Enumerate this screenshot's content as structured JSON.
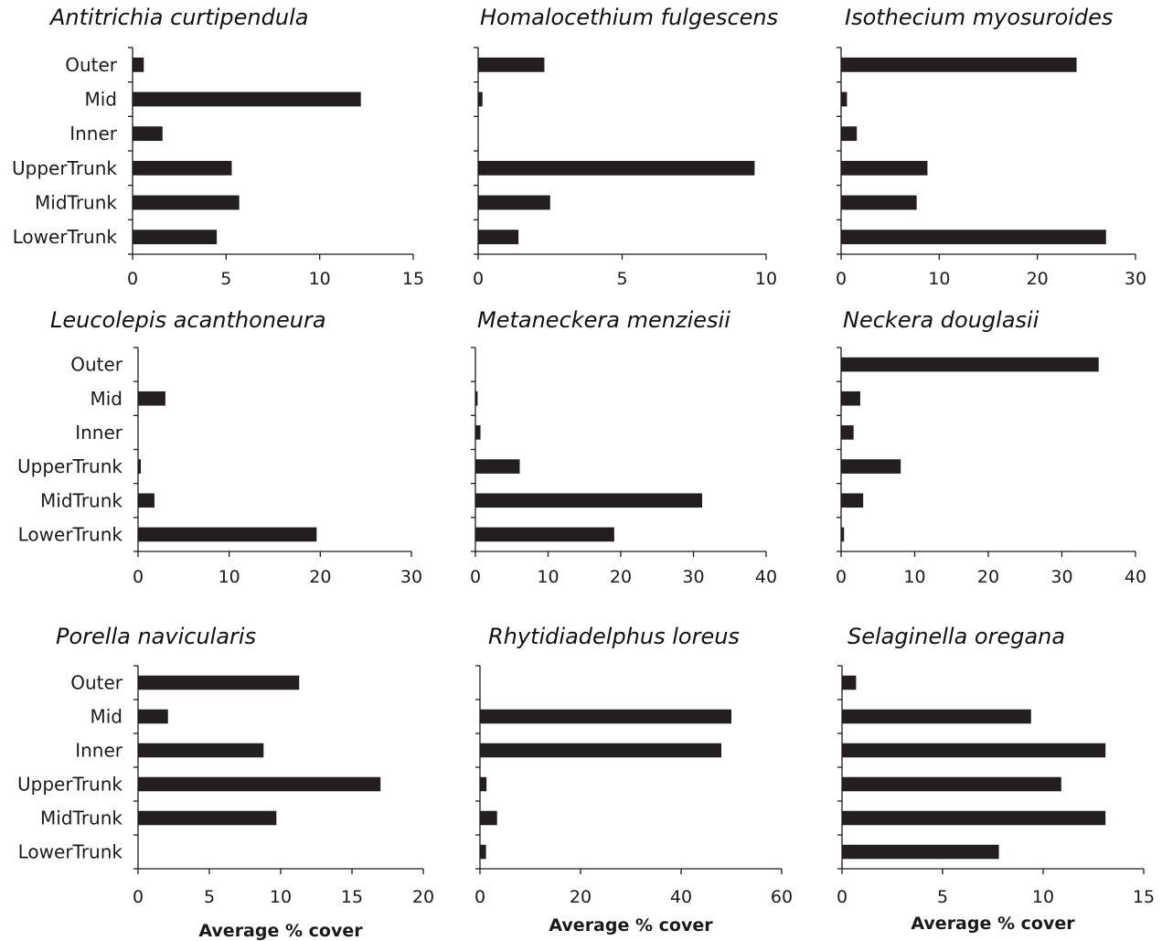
{
  "figure": {
    "bar_color": "#231f20",
    "axis_color": "#1a1a1a"
  },
  "chart_data": [
    {
      "type": "bar",
      "orientation": "horizontal",
      "title": "Antitrichia curtipendula",
      "categories": [
        "LowerTrunk",
        "MidTrunk",
        "UpperTrunk",
        "Inner",
        "Mid",
        "Outer"
      ],
      "values": [
        4.5,
        5.7,
        5.3,
        1.6,
        12.2,
        0.6
      ],
      "xlim": [
        0,
        15
      ],
      "xticks": [
        0,
        5,
        10,
        15
      ],
      "xlabel": "",
      "show_category_labels": true
    },
    {
      "type": "bar",
      "orientation": "horizontal",
      "title": "Homalocethium fulgescens",
      "categories": [
        "LowerTrunk",
        "MidTrunk",
        "UpperTrunk",
        "Inner",
        "Mid",
        "Outer"
      ],
      "values": [
        1.4,
        2.5,
        9.6,
        0,
        0.15,
        2.3
      ],
      "xlim": [
        0,
        10
      ],
      "xticks": [
        0,
        5,
        10
      ],
      "xlabel": "",
      "show_category_labels": false
    },
    {
      "type": "bar",
      "orientation": "horizontal",
      "title": "Isothecium myosuroides",
      "categories": [
        "LowerTrunk",
        "MidTrunk",
        "UpperTrunk",
        "Inner",
        "Mid",
        "Outer"
      ],
      "values": [
        27,
        7.7,
        8.8,
        1.6,
        0.6,
        24
      ],
      "xlim": [
        0,
        30
      ],
      "xticks": [
        0,
        10,
        20,
        30
      ],
      "xlabel": "",
      "show_category_labels": false
    },
    {
      "type": "bar",
      "orientation": "horizontal",
      "title": "Leucolepis acanthoneura",
      "categories": [
        "LowerTrunk",
        "MidTrunk",
        "UpperTrunk",
        "Inner",
        "Mid",
        "Outer"
      ],
      "values": [
        19.6,
        1.8,
        0.3,
        0,
        3,
        0
      ],
      "xlim": [
        0,
        30
      ],
      "xticks": [
        0,
        10,
        20,
        30
      ],
      "xlabel": "",
      "show_category_labels": true
    },
    {
      "type": "bar",
      "orientation": "horizontal",
      "title": "Metaneckera menziesii",
      "categories": [
        "LowerTrunk",
        "MidTrunk",
        "UpperTrunk",
        "Inner",
        "Mid",
        "Outer"
      ],
      "values": [
        19.1,
        31.2,
        6.1,
        0.7,
        0.3,
        0
      ],
      "xlim": [
        0,
        40
      ],
      "xticks": [
        0,
        10,
        20,
        30,
        40
      ],
      "xlabel": "",
      "show_category_labels": false
    },
    {
      "type": "bar",
      "orientation": "horizontal",
      "title": "Neckera douglasii",
      "categories": [
        "LowerTrunk",
        "MidTrunk",
        "UpperTrunk",
        "Inner",
        "Mid",
        "Outer"
      ],
      "values": [
        0.4,
        3,
        8.1,
        1.7,
        2.6,
        35
      ],
      "xlim": [
        0,
        40
      ],
      "xticks": [
        0,
        10,
        20,
        30,
        40
      ],
      "xlabel": "",
      "show_category_labels": false
    },
    {
      "type": "bar",
      "orientation": "horizontal",
      "title": "Porella navicularis",
      "categories": [
        "LowerTrunk",
        "MidTrunk",
        "UpperTrunk",
        "Inner",
        "Mid",
        "Outer"
      ],
      "values": [
        0,
        9.7,
        17,
        8.8,
        2.1,
        11.3
      ],
      "xlim": [
        0,
        20
      ],
      "xticks": [
        0,
        5,
        10,
        15,
        20
      ],
      "xlabel": "Average % cover",
      "show_category_labels": true
    },
    {
      "type": "bar",
      "orientation": "horizontal",
      "title": "Rhytidiadelphus loreus",
      "categories": [
        "LowerTrunk",
        "MidTrunk",
        "UpperTrunk",
        "Inner",
        "Mid",
        "Outer"
      ],
      "values": [
        1.2,
        3.4,
        1.3,
        48,
        50,
        0
      ],
      "xlim": [
        0,
        60
      ],
      "xticks": [
        0,
        20,
        40,
        60
      ],
      "xlabel": "Average % cover",
      "show_category_labels": false
    },
    {
      "type": "bar",
      "orientation": "horizontal",
      "title": "Selaginella oregana",
      "categories": [
        "LowerTrunk",
        "MidTrunk",
        "UpperTrunk",
        "Inner",
        "Mid",
        "Outer"
      ],
      "values": [
        7.8,
        13.1,
        10.9,
        13.1,
        9.4,
        0.7
      ],
      "xlim": [
        0,
        15
      ],
      "xticks": [
        0,
        5,
        10,
        15
      ],
      "xlabel": "Average % cover",
      "show_category_labels": false
    }
  ]
}
